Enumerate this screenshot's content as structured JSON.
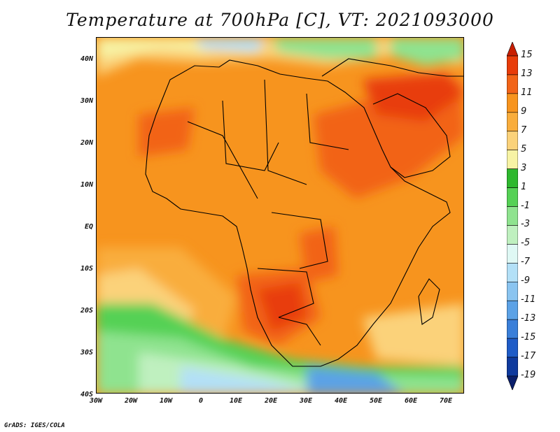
{
  "title": "Temperature at 700hPa [C], VT: 2021093000",
  "credit": "GrADS: IGES/COLA",
  "lat_labels": [
    "40N",
    "30N",
    "20N",
    "10N",
    "EQ",
    "10S",
    "20S",
    "30S",
    "40S"
  ],
  "lon_labels": [
    "30W",
    "20W",
    "10W",
    "0",
    "10E",
    "20E",
    "30E",
    "40E",
    "50E",
    "60E",
    "70E"
  ],
  "colorbar": {
    "labels": [
      "15",
      "13",
      "11",
      "9",
      "7",
      "5",
      "3",
      "1",
      "-1",
      "-3",
      "-5",
      "-7",
      "-9",
      "-11",
      "-13",
      "-15",
      "-17",
      "-19"
    ],
    "colors": [
      "#c81e00",
      "#e83c0a",
      "#f26418",
      "#f7941e",
      "#f9ad3c",
      "#fbd27a",
      "#f7f3a4",
      "#2eb82e",
      "#55d155",
      "#8fe38f",
      "#bff0bf",
      "#dff8f4",
      "#b3e0f7",
      "#8ac4f0",
      "#5ca2e6",
      "#3a7fd9",
      "#1f5cc7",
      "#0f3a9e",
      "#0a1f6b"
    ]
  },
  "map": {
    "lon_range": [
      -30,
      76
    ],
    "lat_range": [
      -40,
      45
    ],
    "colors": {
      "ocean_warm": "#f9a440",
      "tropical": "#f7941e",
      "land_hot": "#f26418",
      "land_very_hot": "#e83c0a",
      "subtropical": "#fbd27a",
      "pale": "#f7f3a4",
      "green": "#55d155",
      "light_green": "#8fe38f",
      "cyan": "#bff0bf",
      "light_blue": "#b3e0f7",
      "blue": "#5ca2e6"
    }
  }
}
